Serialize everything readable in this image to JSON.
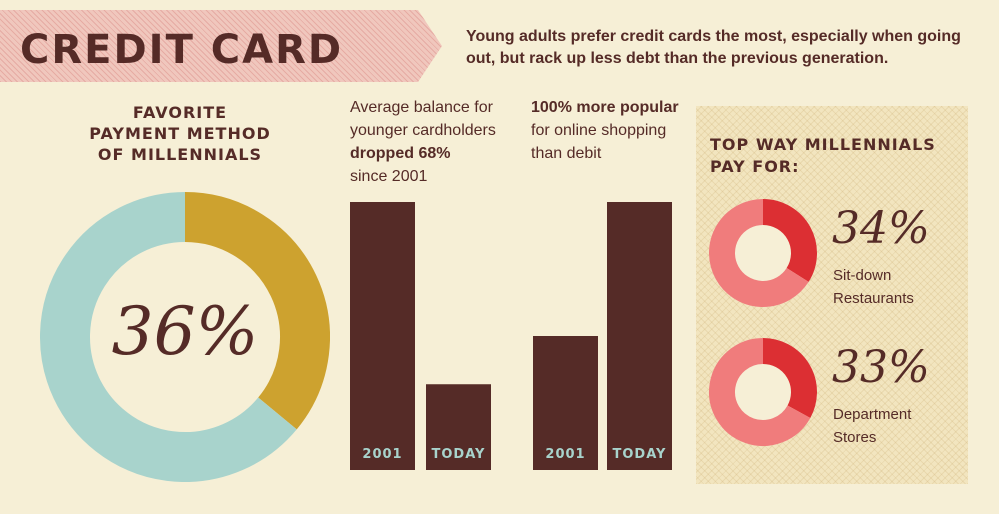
{
  "header": {
    "title": "CREDIT CARD",
    "intro": "Young adults prefer credit cards the most, especially when going out, but rack up less debt than the previous generation."
  },
  "favorite": {
    "heading_lines": [
      "FAVORITE",
      "PAYMENT METHOD",
      "OF MILLENNIALS"
    ],
    "percent_label": "36%"
  },
  "balance": {
    "line1": "Average balance for",
    "line2": "younger cardholders",
    "line3_bold": "dropped 68%",
    "line4": "since 2001"
  },
  "online": {
    "line1_bold": "100% more popular",
    "line2": "for online shopping",
    "line3": "than debit"
  },
  "panel": {
    "heading_lines": [
      "TOP WAY MILLENNIALS",
      "PAY FOR:"
    ],
    "items": [
      {
        "percent_label": "34%",
        "label_lines": [
          "Sit-down",
          "Restaurants"
        ]
      },
      {
        "percent_label": "33%",
        "label_lines": [
          "Department",
          "Stores"
        ]
      }
    ]
  },
  "colors": {
    "brown": "#552b27",
    "mustard": "#cda22f",
    "teal": "#a8d3cc",
    "pink": "#f07c7c",
    "red": "#dc2f33",
    "cream": "#f6efd6"
  },
  "chart_data": [
    {
      "type": "pie",
      "title": "FAVORITE PAYMENT METHOD OF MILLENNIALS",
      "values": [
        36,
        64
      ],
      "colors": [
        "#cda22f",
        "#a8d3cc"
      ]
    },
    {
      "type": "bar",
      "categories": [
        "2001",
        "TODAY"
      ],
      "values": [
        100,
        32
      ],
      "ylim": [
        0,
        100
      ]
    },
    {
      "type": "bar",
      "categories": [
        "2001",
        "TODAY"
      ],
      "values": [
        50,
        100
      ],
      "ylim": [
        0,
        100
      ]
    },
    {
      "type": "pie",
      "values": [
        34,
        66
      ],
      "colors": [
        "#dc2f33",
        "#f07c7c"
      ]
    },
    {
      "type": "pie",
      "values": [
        33,
        67
      ],
      "colors": [
        "#dc2f33",
        "#f07c7c"
      ]
    }
  ]
}
